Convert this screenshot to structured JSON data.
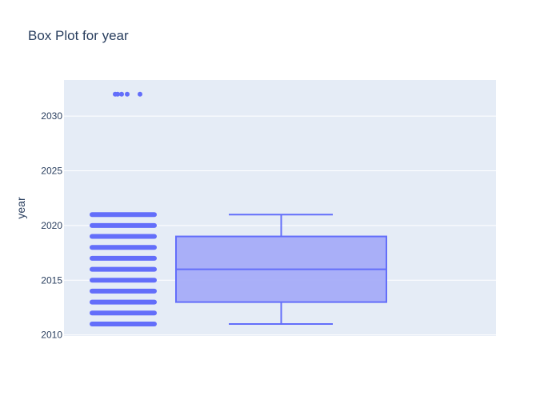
{
  "chart_data": {
    "type": "box",
    "title": "Box Plot for year",
    "xlabel": "",
    "ylabel": "year",
    "ylim": [
      2009.9,
      2033.3
    ],
    "yticks": [
      2010,
      2015,
      2020,
      2025,
      2030
    ],
    "grid": true,
    "legend": "none",
    "colors": {
      "plot_bg": "#e5ecf6",
      "grid": "#ffffff",
      "box_line": "#636efa",
      "box_fill": "#a5acf8",
      "points": "#636efa",
      "text": "#2a3f5f"
    },
    "series": [
      {
        "q1": 2013,
        "median": 2016,
        "q3": 2019,
        "lower_whisker": 2011,
        "upper_whisker": 2021,
        "points": [
          2011,
          2012,
          2013,
          2014,
          2015,
          2016,
          2017,
          2018,
          2019,
          2020,
          2021,
          2032,
          2032,
          2032,
          2032,
          2032
        ]
      }
    ]
  }
}
